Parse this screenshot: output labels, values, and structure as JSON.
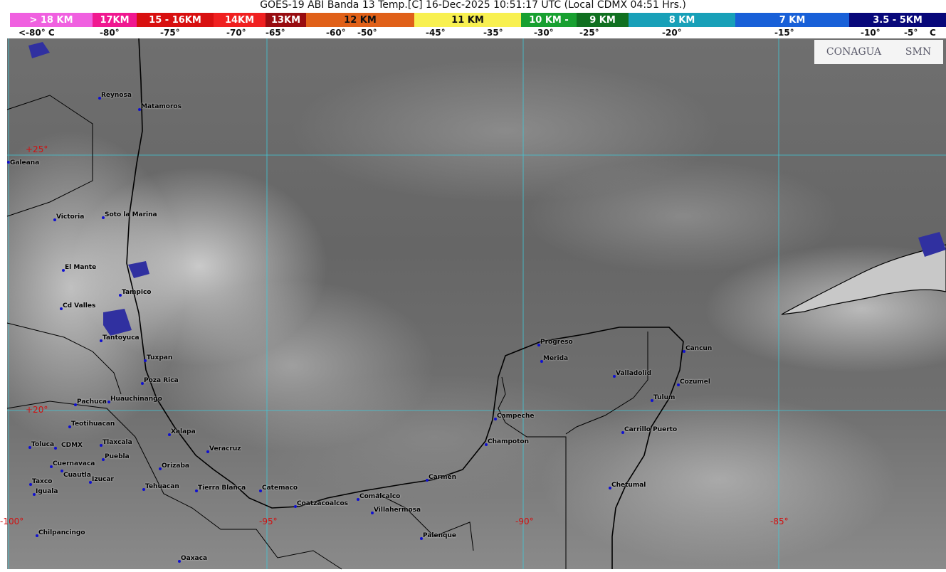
{
  "title": "GOES-19 ABI Banda 13 Temp.[C] 16-Dec-2025 10:51:17 UTC (Local CDMX  04:51 Hrs.)",
  "scale": [
    {
      "label": "> 18 KM",
      "color": "#f060e0"
    },
    {
      "label": "17KM",
      "color": "#f01890"
    },
    {
      "label": "15 - 16KM",
      "color": "#d81010"
    },
    {
      "label": "14KM",
      "color": "#f02020"
    },
    {
      "label": "13KM",
      "color": "#980c10"
    },
    {
      "label": "12 KM",
      "color": "#e06018",
      "text_color": "#111"
    },
    {
      "label": "11 KM",
      "color": "#f8f050",
      "text_color": "#111"
    },
    {
      "label": "10 KM -",
      "color": "#18a030"
    },
    {
      "label": "9 KM",
      "color": "#107020"
    },
    {
      "label": "8 KM",
      "color": "#18a0b8"
    },
    {
      "label": "7 KM",
      "color": "#1860d8"
    },
    {
      "label": "3.5 - 5KM",
      "color": "#08087a"
    }
  ],
  "ticks": [
    "<-80° C",
    "-80°",
    "-75°",
    "-70°",
    "-65°",
    "-60°",
    "-50°",
    "-45°",
    "-35°",
    "-30°",
    "-25°",
    "-20°",
    "-15°",
    "-10°",
    "-5°",
    "C"
  ],
  "grid": {
    "longitudes": [
      "-100°",
      "-95°",
      "-90°",
      "-85°"
    ],
    "latitudes": [
      "+25°",
      "+20°"
    ],
    "color": "#40c8d8",
    "label_color": "#d01010"
  },
  "cities": [
    "Reynosa",
    "Matamoros",
    "Galeana",
    "Victoria",
    "Soto la Marina",
    "El Mante",
    "Tampico",
    "Cd Valles",
    "Tantoyuca",
    "Tuxpan",
    "Poza Rica",
    "Pachuca",
    "Huauchinango",
    "Teotihuacan",
    "Toluca",
    "CDMX",
    "Tlaxcala",
    "Puebla",
    "Xalapa",
    "Veracruz",
    "Cuernavaca",
    "Cuautla",
    "Orizaba",
    "Taxco",
    "Izucar",
    "Tehuacan",
    "Tierra Blanca",
    "Catemaco",
    "Iguala",
    "Coatzacoalcos",
    "Comalcalco",
    "Villahermosa",
    "Chilpancingo",
    "Palenque",
    "Oaxaca",
    "Carmen",
    "Champoton",
    "Campeche",
    "Progreso",
    "Merida",
    "Valladolid",
    "Cancun",
    "Cozumel",
    "Tulum",
    "Carrillo Puerto",
    "Chetumal"
  ],
  "logos": {
    "conagua": "CONAGUA",
    "smn": "SMN"
  }
}
